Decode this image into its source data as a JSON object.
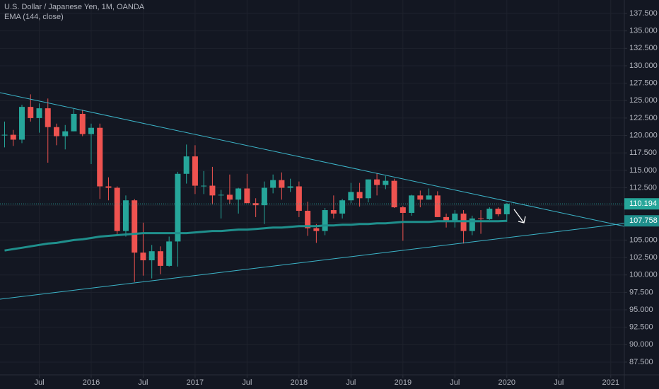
{
  "chart_data": {
    "type": "candlestick",
    "title": "U.S. Dollar / Japanese Yen, 1M, OANDA",
    "x": [
      "2015-03",
      "2015-04",
      "2015-05",
      "2015-06",
      "2015-07",
      "2015-08",
      "2015-09",
      "2015-10",
      "2015-11",
      "2015-12",
      "2016-01",
      "2016-02",
      "2016-03",
      "2016-04",
      "2016-05",
      "2016-06",
      "2016-07",
      "2016-08",
      "2016-09",
      "2016-10",
      "2016-11",
      "2016-12",
      "2017-01",
      "2017-02",
      "2017-03",
      "2017-04",
      "2017-05",
      "2017-06",
      "2017-07",
      "2017-08",
      "2017-09",
      "2017-10",
      "2017-11",
      "2017-12",
      "2018-01",
      "2018-02",
      "2018-03",
      "2018-04",
      "2018-05",
      "2018-06",
      "2018-07",
      "2018-08",
      "2018-09",
      "2018-10",
      "2018-11",
      "2018-12",
      "2019-01",
      "2019-02",
      "2019-03",
      "2019-04",
      "2019-05",
      "2019-06",
      "2019-07",
      "2019-08",
      "2019-09",
      "2019-10",
      "2019-11",
      "2019-12",
      "2020-01"
    ],
    "open": [
      120.1,
      120.1,
      119.4,
      124.1,
      122.5,
      123.9,
      121.2,
      119.9,
      120.6,
      123.1,
      120.2,
      121.1,
      112.7,
      112.5,
      106.3,
      110.7,
      103.2,
      102.1,
      103.4,
      101.3,
      104.8,
      114.5,
      117.0,
      112.8,
      112.8,
      111.4,
      111.5,
      110.8,
      112.4,
      110.3,
      110.0,
      112.5,
      113.6,
      112.5,
      112.7,
      109.2,
      106.7,
      106.3,
      109.3,
      108.8,
      110.7,
      111.9,
      111.0,
      113.7,
      112.9,
      113.5,
      109.7,
      108.9,
      111.4,
      110.8,
      111.4,
      108.3,
      107.8,
      108.8,
      106.3,
      108.1,
      108.0,
      109.5,
      108.7
    ],
    "high": [
      122.0,
      120.8,
      124.4,
      125.9,
      124.6,
      125.3,
      121.7,
      121.5,
      123.8,
      123.7,
      121.7,
      121.7,
      114.0,
      112.7,
      111.4,
      110.9,
      107.5,
      104.3,
      104.1,
      105.5,
      114.8,
      118.7,
      118.6,
      114.9,
      115.5,
      112.2,
      114.4,
      112.5,
      114.5,
      111.0,
      113.4,
      114.4,
      114.7,
      113.8,
      113.4,
      110.5,
      107.3,
      109.6,
      111.4,
      110.9,
      113.2,
      113.2,
      113.7,
      114.6,
      114.2,
      113.8,
      109.9,
      111.5,
      112.1,
      112.4,
      112.0,
      108.8,
      109.3,
      109.3,
      108.5,
      109.3,
      109.7,
      109.7,
      110.3
    ],
    "low": [
      118.3,
      118.5,
      118.9,
      122.0,
      120.4,
      116.1,
      118.6,
      118.0,
      120.6,
      119.9,
      115.9,
      110.9,
      110.7,
      105.6,
      105.5,
      99.0,
      99.9,
      99.5,
      100.1,
      101.2,
      101.2,
      113.1,
      111.6,
      111.6,
      110.1,
      108.1,
      110.2,
      108.8,
      110.6,
      108.3,
      107.3,
      111.7,
      110.8,
      111.9,
      108.3,
      105.6,
      104.6,
      105.7,
      108.1,
      108.1,
      110.3,
      109.8,
      110.4,
      111.4,
      112.3,
      109.6,
      104.9,
      108.5,
      109.7,
      110.8,
      108.3,
      106.8,
      106.8,
      104.5,
      105.7,
      105.9,
      107.9,
      108.4,
      107.6
    ],
    "close": [
      120.1,
      119.4,
      124.1,
      122.5,
      123.9,
      121.2,
      119.9,
      120.6,
      123.1,
      120.2,
      121.1,
      112.7,
      112.5,
      106.3,
      110.7,
      103.2,
      102.1,
      103.4,
      101.3,
      104.8,
      114.5,
      117.0,
      112.8,
      112.8,
      111.4,
      111.5,
      110.8,
      112.4,
      110.3,
      110.0,
      112.5,
      113.6,
      112.5,
      112.7,
      109.2,
      106.7,
      106.3,
      109.3,
      108.8,
      110.7,
      111.9,
      111.0,
      113.7,
      112.9,
      113.5,
      109.7,
      108.9,
      111.4,
      110.8,
      111.4,
      108.3,
      107.8,
      108.8,
      106.3,
      108.1,
      108.0,
      109.5,
      108.7,
      110.194
    ],
    "up_color": "#26a69a",
    "down_color": "#ef5350",
    "ema": {
      "name": "EMA (144, close)",
      "color": "#1f8f8c",
      "values": [
        103.5,
        103.7,
        103.9,
        104.1,
        104.3,
        104.5,
        104.6,
        104.8,
        105.0,
        105.1,
        105.3,
        105.5,
        105.6,
        105.7,
        105.8,
        105.9,
        106.0,
        106.0,
        106.0,
        106.0,
        106.0,
        106.0,
        106.1,
        106.2,
        106.3,
        106.3,
        106.4,
        106.5,
        106.5,
        106.6,
        106.7,
        106.8,
        106.8,
        106.9,
        107.0,
        107.0,
        107.0,
        107.1,
        107.1,
        107.2,
        107.2,
        107.3,
        107.3,
        107.4,
        107.4,
        107.5,
        107.6,
        107.6,
        107.6,
        107.6,
        107.7,
        107.7,
        107.7,
        107.7,
        107.7,
        107.7,
        107.7,
        107.7,
        107.758
      ]
    },
    "xlim": [
      "2015-03",
      "2021-02"
    ],
    "xticks": [
      {
        "value": "2015-07",
        "label": "Jul"
      },
      {
        "value": "2016-01",
        "label": "2016"
      },
      {
        "value": "2016-07",
        "label": "Jul"
      },
      {
        "value": "2017-01",
        "label": "2017"
      },
      {
        "value": "2017-07",
        "label": "Jul"
      },
      {
        "value": "2018-01",
        "label": "2018"
      },
      {
        "value": "2018-07",
        "label": "Jul"
      },
      {
        "value": "2019-01",
        "label": "2019"
      },
      {
        "value": "2019-07",
        "label": "Jul"
      },
      {
        "value": "2020-01",
        "label": "2020"
      },
      {
        "value": "2020-07",
        "label": "Jul"
      },
      {
        "value": "2021-01",
        "label": "2021"
      }
    ],
    "ylim": [
      85.67,
      139.43
    ],
    "yticks": [
      {
        "value": 87.5,
        "label": "87.500"
      },
      {
        "value": 90,
        "label": "90.000"
      },
      {
        "value": 92.5,
        "label": "92.500"
      },
      {
        "value": 95,
        "label": "95.000"
      },
      {
        "value": 97.5,
        "label": "97.500"
      },
      {
        "value": 100,
        "label": "100.000"
      },
      {
        "value": 102.5,
        "label": "102.500"
      },
      {
        "value": 105,
        "label": "105.000"
      },
      {
        "value": 107.5,
        "label": "107.500"
      },
      {
        "value": 110,
        "label": "110.000"
      },
      {
        "value": 112.5,
        "label": "112.500"
      },
      {
        "value": 115,
        "label": "115.000"
      },
      {
        "value": 117.5,
        "label": "117.500"
      },
      {
        "value": 120,
        "label": "120.000"
      },
      {
        "value": 122.5,
        "label": "122.500"
      },
      {
        "value": 125,
        "label": "125.000"
      },
      {
        "value": 127.5,
        "label": "127.500"
      },
      {
        "value": 130,
        "label": "130.000"
      },
      {
        "value": 132.5,
        "label": "132.500"
      },
      {
        "value": 135,
        "label": "135.000"
      },
      {
        "value": 137.5,
        "label": "137.500"
      }
    ],
    "grid": true
  }
}
